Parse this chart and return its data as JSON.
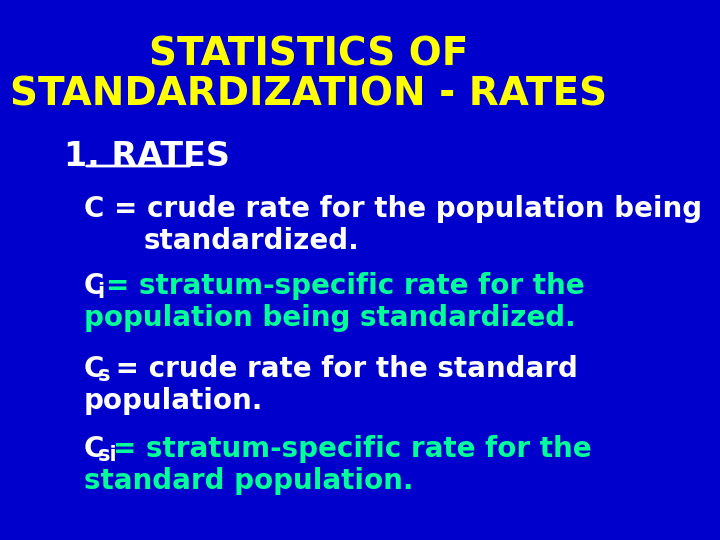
{
  "background_color": "#0000CC",
  "title_line1": "STATISTICS OF",
  "title_line2": "STANDARDIZATION - RATES",
  "title_color": "#FFFF00",
  "title_fontsize": 28,
  "section_label": "1. RATES",
  "section_color": "#FFFFFF",
  "section_fontsize": 24,
  "white_color": "#FFFFFF",
  "cyan_color": "#00FF99",
  "body_fontsize": 20,
  "line1_white": "C = crude rate for the population being",
  "line1b_white": "standardized.",
  "line2_ci_white": "C",
  "line2_ci_sub": "i",
  "line2_ci_cyan": "= stratum-specific rate for the",
  "line2b_cyan": "population being standardized.",
  "line3_cs_white": "C",
  "line3_cs_sub": "s",
  "line3_cs_white2": " = crude rate for the standard",
  "line3b_white": "population.",
  "line4_csi_white": "C",
  "line4_csi_sub": "si",
  "line4_csi_cyan": "= stratum-specific rate for the",
  "line4b_cyan": "standard population."
}
